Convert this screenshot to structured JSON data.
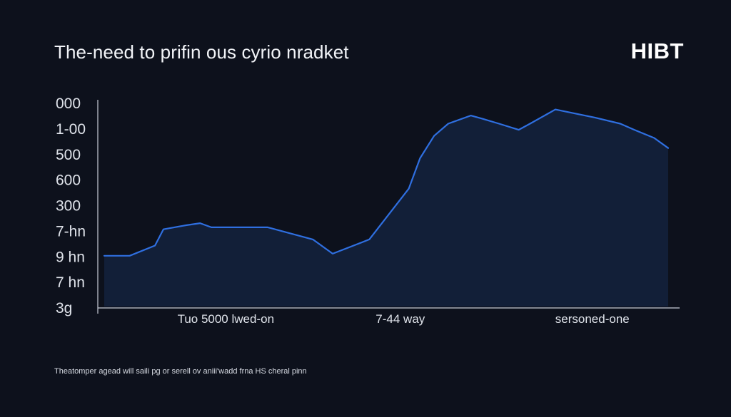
{
  "header": {
    "title": "The-need to prifin ous cyrio nradket",
    "logo": "HIBT"
  },
  "footnote": "Theatomper agead will saili pg or serell ov aniii'wadd frna HS cheral pinn",
  "colors": {
    "background": "#0d111c",
    "line": "#2f6fe0",
    "area": "#13213a",
    "axis": "#c9ced8",
    "text": "#e8ecf2"
  },
  "chart_data": {
    "type": "area",
    "title": "The-need to prifin ous cyrio nradket",
    "xlabel": "",
    "ylabel": "",
    "grid": false,
    "legend": "none",
    "y_tick_labels": [
      "000",
      "1-00",
      "500",
      "600",
      "300",
      "7-hn",
      "9 hn",
      "7 hn",
      "3g"
    ],
    "x_tick_labels": [
      "Tuo 5000 lwed-on",
      "7-44 way",
      "sersoned-one"
    ],
    "x_tick_positions": [
      0.22,
      0.52,
      0.85
    ],
    "x": [
      0,
      0.045,
      0.09,
      0.105,
      0.145,
      0.17,
      0.19,
      0.29,
      0.37,
      0.405,
      0.47,
      0.54,
      0.56,
      0.585,
      0.61,
      0.65,
      0.67,
      0.7,
      0.735,
      0.755,
      0.8,
      0.87,
      0.915,
      0.94,
      0.975,
      1.0
    ],
    "y": [
      0.25,
      0.25,
      0.3,
      0.38,
      0.4,
      0.41,
      0.39,
      0.39,
      0.33,
      0.26,
      0.33,
      0.58,
      0.73,
      0.84,
      0.9,
      0.94,
      0.925,
      0.9,
      0.87,
      0.9,
      0.97,
      0.93,
      0.9,
      0.87,
      0.83,
      0.78
    ],
    "ylim": [
      0,
      1
    ]
  }
}
